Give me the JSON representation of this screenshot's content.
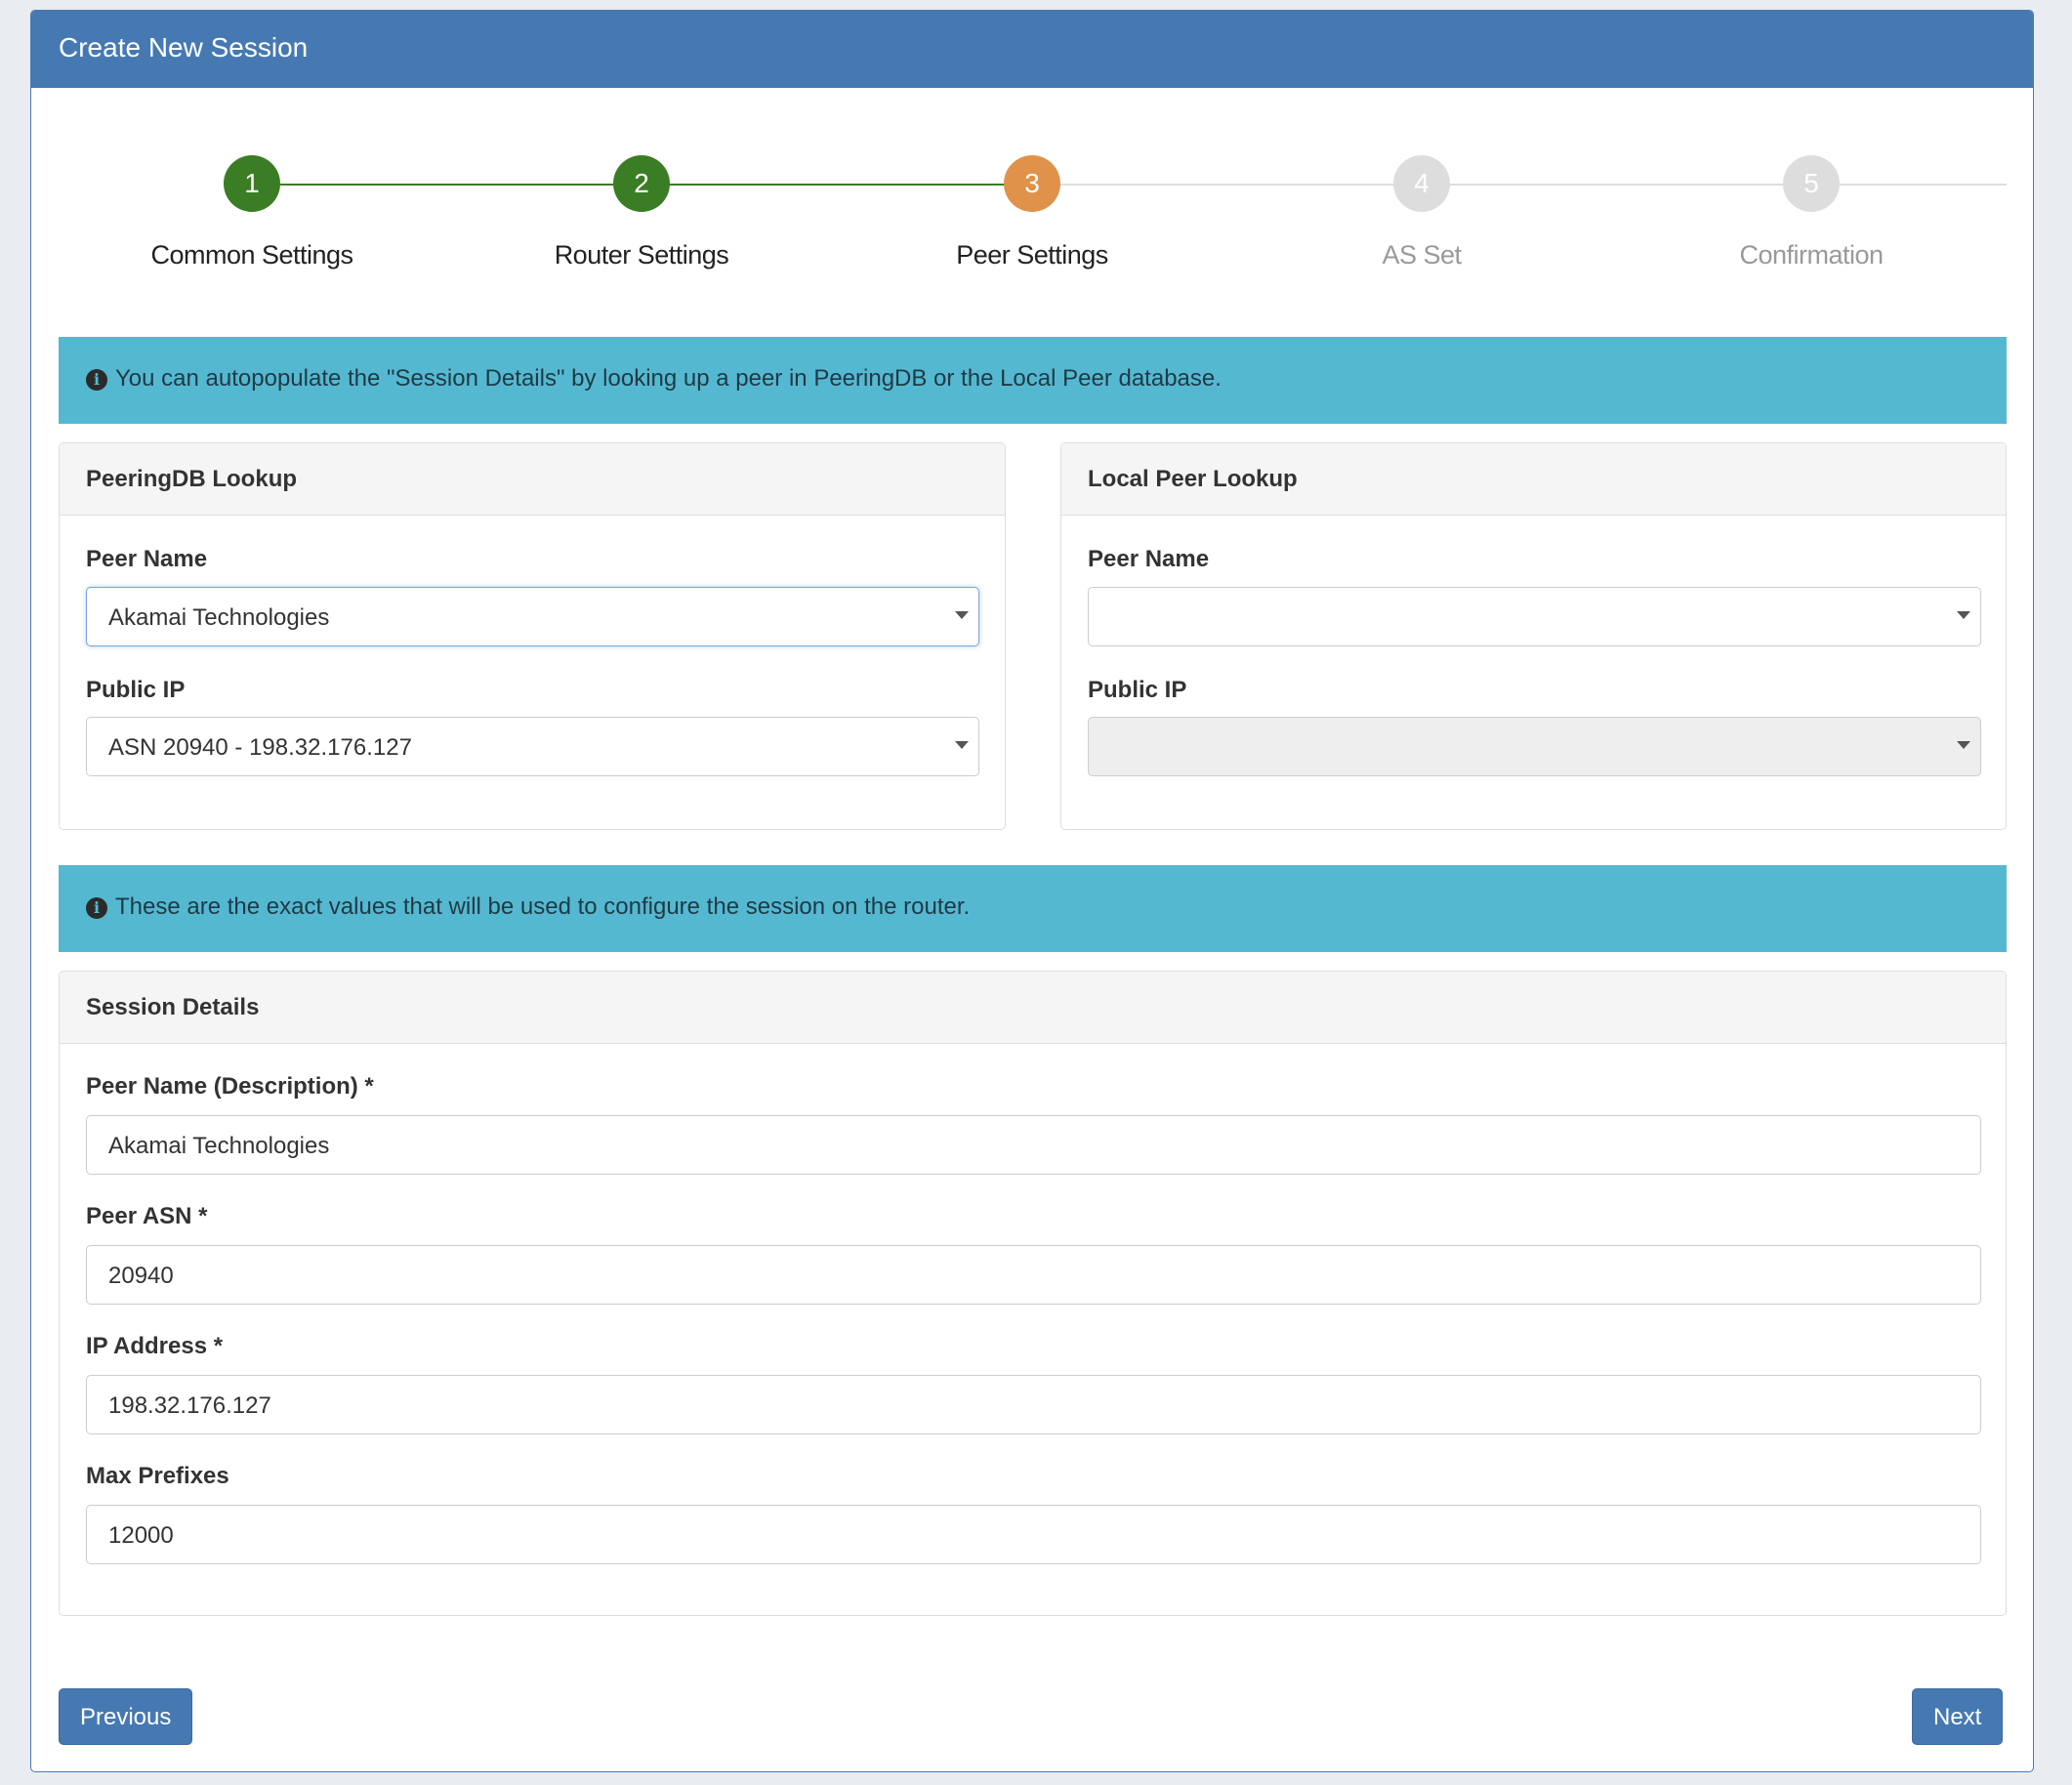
{
  "header": {
    "title": "Create New Session"
  },
  "steps": [
    {
      "number": "1",
      "label": "Common Settings",
      "state": "complete"
    },
    {
      "number": "2",
      "label": "Router Settings",
      "state": "complete"
    },
    {
      "number": "3",
      "label": "Peer Settings",
      "state": "active"
    },
    {
      "number": "4",
      "label": "AS Set",
      "state": "pending"
    },
    {
      "number": "5",
      "label": "Confirmation",
      "state": "pending"
    }
  ],
  "colors": {
    "complete": "#3a7d25",
    "active": "#e0924a",
    "pending": "#dddddd",
    "header": "#4679b2",
    "info": "#55b8d1"
  },
  "alerts": {
    "lookup": "You can autopopulate the \"Session Details\" by looking up a peer in PeeringDB or the Local Peer database.",
    "session": "These are the exact values that will be used to configure the session on the router."
  },
  "peeringdb": {
    "title": "PeeringDB Lookup",
    "peer_name_label": "Peer Name",
    "peer_name_value": "Akamai Technologies",
    "public_ip_label": "Public IP",
    "public_ip_value": "ASN 20940 - 198.32.176.127"
  },
  "local": {
    "title": "Local Peer Lookup",
    "peer_name_label": "Peer Name",
    "peer_name_value": "",
    "public_ip_label": "Public IP",
    "public_ip_value": ""
  },
  "session": {
    "title": "Session Details",
    "fields": [
      {
        "label": "Peer Name (Description) *",
        "value": "Akamai Technologies"
      },
      {
        "label": "Peer ASN *",
        "value": "20940"
      },
      {
        "label": "IP Address *",
        "value": "198.32.176.127"
      },
      {
        "label": "Max Prefixes",
        "value": "12000"
      }
    ]
  },
  "buttons": {
    "previous": "Previous",
    "next": "Next"
  }
}
